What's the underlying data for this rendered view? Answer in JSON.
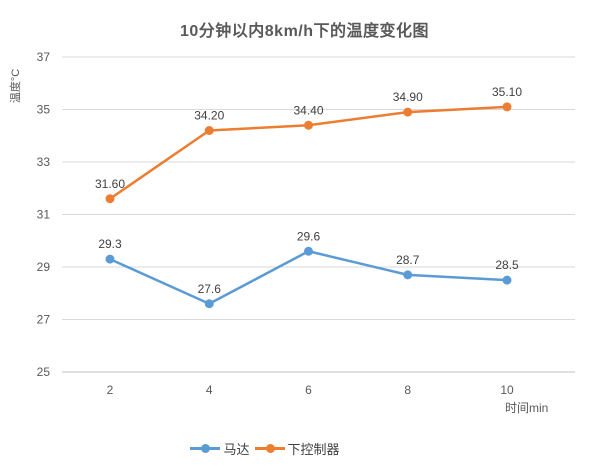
{
  "title": "10分钟以内8km/h下的温度变化图",
  "y_axis_title": "温度°C",
  "x_axis_title": "时间min",
  "legend": {
    "items": [
      {
        "label": "马达",
        "color": "#5B9BD5"
      },
      {
        "label": "下控制器",
        "color": "#ED7D31"
      }
    ]
  },
  "colors": {
    "series_blue": "#5B9BD5",
    "series_orange": "#ED7D31",
    "gridline": "#D9D9D9",
    "axis_line": "#BFBFBF",
    "tick_text": "#595959",
    "data_label_text": "#404040",
    "title_text": "#595959",
    "background": "#ffffff"
  },
  "chart_data": {
    "type": "line",
    "title": "10分钟以内8km/h下的温度变化图",
    "xlabel": "时间min",
    "ylabel": "温度°C",
    "categories": [
      "2",
      "4",
      "6",
      "8",
      "10"
    ],
    "x_values": [
      2,
      4,
      6,
      8,
      10
    ],
    "series": [
      {
        "name": "马达",
        "color": "#5B9BD5",
        "values": [
          29.3,
          27.6,
          29.6,
          28.7,
          28.5
        ],
        "data_labels": [
          "29.3",
          "27.6",
          "29.6",
          "28.7",
          "28.5"
        ]
      },
      {
        "name": "下控制器",
        "color": "#ED7D31",
        "values": [
          31.6,
          34.2,
          34.4,
          34.9,
          35.1
        ],
        "data_labels": [
          "31.60",
          "34.20",
          "34.40",
          "34.90",
          "35.10"
        ]
      }
    ],
    "y_ticks": [
      25,
      27,
      29,
      31,
      33,
      35,
      37
    ],
    "ylim": [
      25,
      37
    ],
    "grid": true,
    "marker": "circle",
    "legend_position": "bottom"
  }
}
